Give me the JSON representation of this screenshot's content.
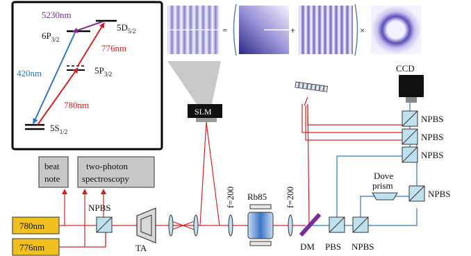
{
  "energy_levels": {
    "wl_5230": "5230nm",
    "wl_776": "776nm",
    "wl_420": "420nm",
    "wl_780": "780nm",
    "level_6p_main": "6P",
    "level_6p_sub": "3/2",
    "level_5d_main": "5D",
    "level_5d_sub": "5/2",
    "level_5p_main": "5P",
    "level_5p_sub": "3/2",
    "level_5s_main": "5S",
    "level_5s_sub": "1/2"
  },
  "equation": {
    "equals": "=",
    "plus": "+",
    "times": "×"
  },
  "components": {
    "slm": "SLM",
    "ccd": "CCD",
    "npbs": "NPBS",
    "pbs": "PBS",
    "dm": "DM",
    "ta": "TA",
    "rb85": "Rb85",
    "lens1": "f=200",
    "lens2": "f=200",
    "dove_line1": "Dove",
    "dove_line2": "prism"
  },
  "boxes": {
    "beat_line1": "beat",
    "beat_line2": "note",
    "spec_line1": "two-photon",
    "spec_line2": "spectroscopy"
  },
  "lasers": {
    "laser_780": "780nm",
    "laser_776": "776nm"
  },
  "colors": {
    "red_beam": "#d62020",
    "blue_beam": "#2a78c0",
    "purple_arrow": "#7a2b9c",
    "laser_box": "#f2c01e",
    "grey_box": "#c8c8c8",
    "optic_fill": "#bfe0ef"
  }
}
